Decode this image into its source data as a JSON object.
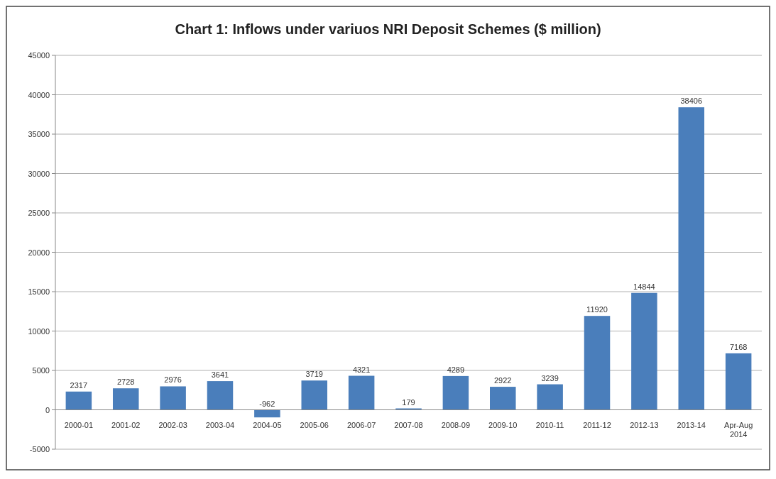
{
  "chart_data": {
    "type": "bar",
    "title": "Chart 1: Inflows under variuos NRI Deposit Schemes ($ million)",
    "categories": [
      "2000-01",
      "2001-02",
      "2002-03",
      "2003-04",
      "2004-05",
      "2005-06",
      "2006-07",
      "2007-08",
      "2008-09",
      "2009-10",
      "2010-11",
      "2011-12",
      "2012-13",
      "2013-14",
      "Apr-Aug 2014"
    ],
    "values": [
      2317,
      2728,
      2976,
      3641,
      -962,
      3719,
      4321,
      179,
      4289,
      2922,
      3239,
      11920,
      14844,
      38406,
      7168
    ],
    "color": "#4a7ebb",
    "ylim": [
      -5000,
      45000
    ],
    "yticks": [
      -5000,
      0,
      5000,
      10000,
      15000,
      20000,
      25000,
      30000,
      35000,
      40000,
      45000
    ],
    "grid": "y",
    "data_labels": true
  }
}
